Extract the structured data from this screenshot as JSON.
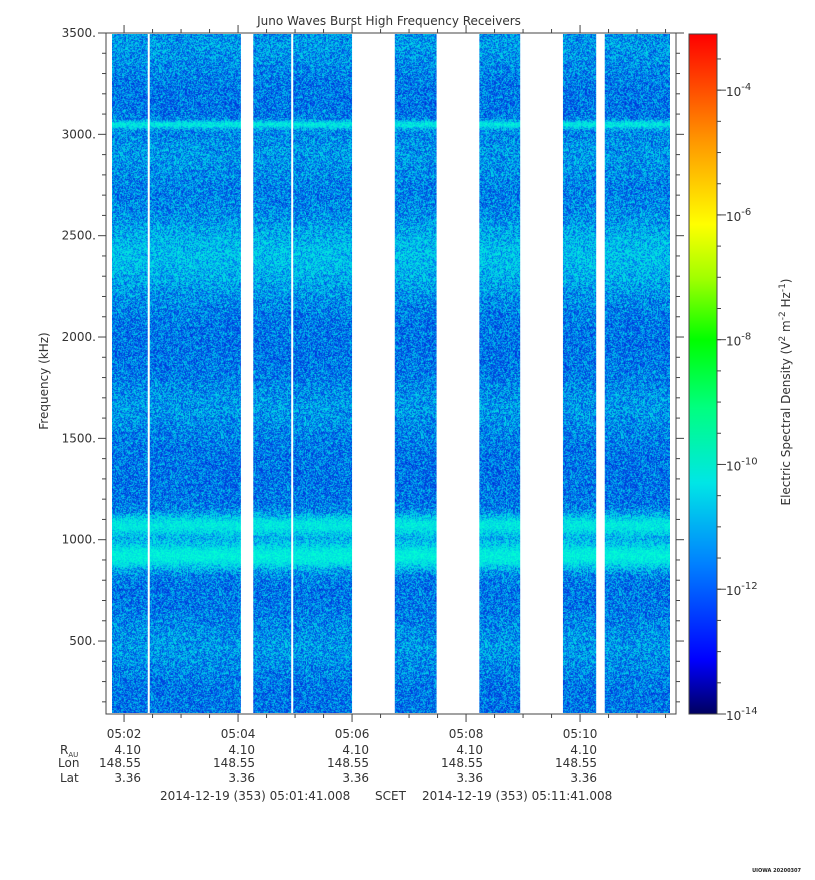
{
  "chart_data": {
    "type": "heatmap",
    "title": "Juno Waves Burst High Frequency Receivers",
    "ylabel": "Frequency (kHz)",
    "ylim": [
      140,
      3500
    ],
    "y_ticks": [
      "500.",
      "1000.",
      "1500.",
      "2000.",
      "2500.",
      "3000.",
      "3500."
    ],
    "y_tick_values": [
      500,
      1000,
      1500,
      2000,
      2500,
      3000,
      3500
    ],
    "x_ticks": [
      "05:02",
      "05:04",
      "05:06",
      "05:08",
      "05:10"
    ],
    "x_tick_values": [
      "05:02",
      "05:04",
      "05:06",
      "05:08",
      "05:10"
    ],
    "xlim": [
      "05:01:41",
      "05:11:41"
    ],
    "data_gaps": [
      [
        "05:04:03",
        "05:04:16"
      ],
      [
        "05:06:00",
        "05:06:45"
      ],
      [
        "05:07:29",
        "05:08:14"
      ],
      [
        "05:08:57",
        "05:09:42"
      ],
      [
        "05:10:17",
        "05:10:26"
      ]
    ],
    "features": [
      {
        "frequency_khz": 3050,
        "description": "narrow enhanced line"
      },
      {
        "frequency_khz": 2400,
        "description": "broad enhanced band"
      },
      {
        "frequency_khz": 1075,
        "description": "enhanced band"
      },
      {
        "frequency_khz": 920,
        "description": "enhanced band"
      }
    ],
    "colorbar": {
      "label_main": "Electric Spectral Density (V",
      "label_sup1": "2",
      "label_mid": " m",
      "label_sup2": "-2",
      "label_mid2": " Hz",
      "label_sup3": "-1",
      "label_end": ")",
      "scale": "log",
      "range": [
        -14,
        -3.1
      ],
      "ticks_base": "10",
      "tick_exponents": [
        "-14",
        "-12",
        "-10",
        "-8",
        "-6",
        "-4"
      ],
      "tick_values": [
        -14,
        -12,
        -10,
        -8,
        -6,
        -4
      ]
    }
  },
  "ephemeris": {
    "labels": {
      "r": "R",
      "r_sub": "AU",
      "lon": "Lon",
      "lat": "Lat"
    },
    "columns": [
      {
        "r": "4.10",
        "lon": "148.55",
        "lat": "3.36"
      },
      {
        "r": "4.10",
        "lon": "148.55",
        "lat": "3.36"
      },
      {
        "r": "4.10",
        "lon": "148.55",
        "lat": "3.36"
      },
      {
        "r": "4.10",
        "lon": "148.55",
        "lat": "3.36"
      },
      {
        "r": "4.10",
        "lon": "148.55",
        "lat": "3.36"
      }
    ]
  },
  "footer": {
    "start": "2014-12-19 (353) 05:01:41.008",
    "mid": "SCET",
    "end": "2014-12-19 (353) 05:11:41.008"
  },
  "stamp": "UIOWA 20200307",
  "colors": {
    "colormap": [
      "#00007f",
      "#0000ff",
      "#0080ff",
      "#00ffff",
      "#00ff80",
      "#00ff00",
      "#80ff00",
      "#ffff00",
      "#ff8000",
      "#ff0000"
    ],
    "background_noise": "#1a4fe0",
    "enhanced_band": "#00e6d6"
  }
}
